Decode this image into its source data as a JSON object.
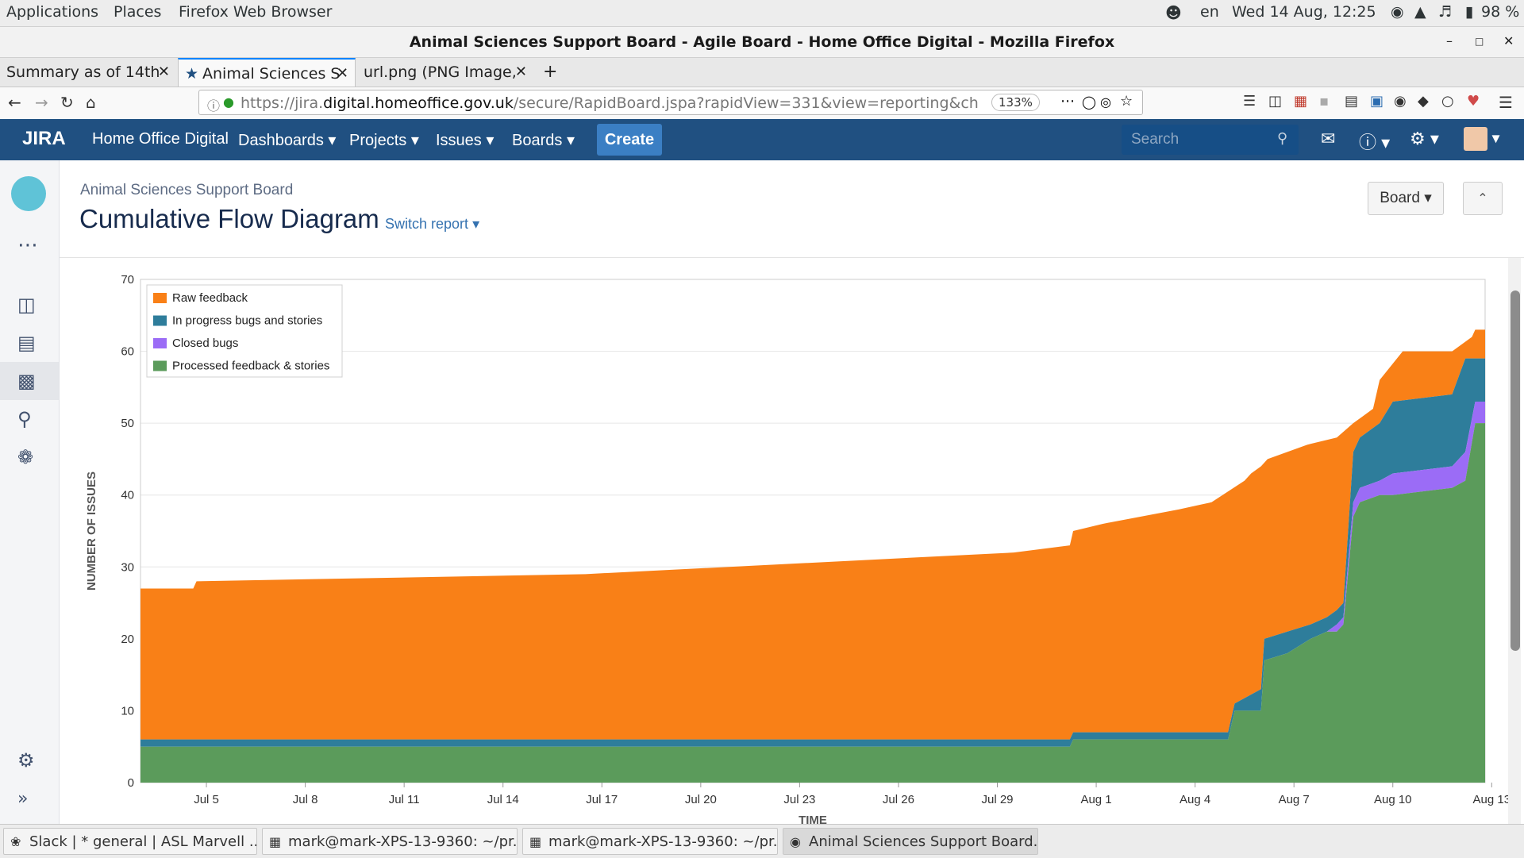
{
  "system_bar": {
    "menus": [
      "Applications",
      "Places",
      "Firefox Web Browser"
    ],
    "lang": "en",
    "clock": "Wed 14 Aug, 12:25",
    "battery": "98 %"
  },
  "window": {
    "title": "Animal Sciences Support Board - Agile Board - Home Office Digital - Mozilla Firefox"
  },
  "tabs": [
    {
      "label": "Summary as of 14th",
      "active": false
    },
    {
      "label": "Animal Sciences S",
      "active": true
    },
    {
      "label": "url.png (PNG Image,",
      "active": false
    }
  ],
  "address": {
    "url_prefix": "https://jira.",
    "url_domain": "digital.homeoffice.gov.uk",
    "url_path": "/secure/RapidBoard.jspa?rapidView=331&view=reporting&ch",
    "zoom": "133%"
  },
  "jira_header": {
    "logo": "JIRA",
    "site": "Home Office Digital",
    "menus": [
      "Dashboards",
      "Projects",
      "Issues",
      "Boards"
    ],
    "create_label": "Create",
    "search_placeholder": "Search"
  },
  "page": {
    "breadcrumb": "Animal Sciences Support Board",
    "title": "Cumulative Flow Diagram",
    "switch_report": "Switch report",
    "board_button": "Board"
  },
  "chart_data": {
    "type": "area",
    "stacked": true,
    "title": "Cumulative Flow Diagram",
    "xlabel": "TIME",
    "ylabel": "NUMBER OF ISSUES",
    "ylim": [
      0,
      70
    ],
    "yticks": [
      0,
      10,
      20,
      30,
      40,
      50,
      60,
      70
    ],
    "x_range_days": [
      0,
      40.8
    ],
    "x_ticks": [
      {
        "day": 2,
        "label": "Jul 5"
      },
      {
        "day": 5,
        "label": "Jul 8"
      },
      {
        "day": 8,
        "label": "Jul 11"
      },
      {
        "day": 11,
        "label": "Jul 14"
      },
      {
        "day": 14,
        "label": "Jul 17"
      },
      {
        "day": 17,
        "label": "Jul 20"
      },
      {
        "day": 20,
        "label": "Jul 23"
      },
      {
        "day": 23,
        "label": "Jul 26"
      },
      {
        "day": 26,
        "label": "Jul 29"
      },
      {
        "day": 29,
        "label": "Aug 1"
      },
      {
        "day": 32,
        "label": "Aug 4"
      },
      {
        "day": 35,
        "label": "Aug 7"
      },
      {
        "day": 38,
        "label": "Aug 10"
      },
      {
        "day": 41,
        "label": "Aug 13"
      }
    ],
    "legend_position": "top-left",
    "series_order_top_to_bottom": [
      "Raw feedback",
      "In progress bugs and stories",
      "Closed bugs",
      "Processed feedback & stories"
    ],
    "colors": {
      "Raw feedback": "#f98017",
      "In progress bugs and stories": "#2e7d9b",
      "Closed bugs": "#9b6cf6",
      "Processed feedback & stories": "#5b9b5b"
    },
    "cumulative_totals": {
      "day": [
        0,
        1.6,
        1.7,
        13.5,
        26.5,
        28.2,
        28.3,
        29.2,
        31.5,
        32.5,
        33.5,
        33.7,
        34.0,
        34.2,
        34.8,
        35.4,
        36.3,
        36.8,
        37.1,
        37.4,
        37.6,
        38.3,
        39.8,
        40.4,
        40.5,
        40.8
      ],
      "total": [
        27,
        27,
        28,
        29,
        32,
        33,
        35,
        36,
        38,
        39,
        42,
        43,
        44,
        45,
        46,
        47,
        48,
        50,
        51,
        52,
        56,
        60,
        60,
        62,
        63,
        63
      ]
    },
    "band_tops": {
      "day": [
        0,
        28.2,
        28.3,
        33.0,
        33.2,
        34.0,
        34.1,
        34.8,
        35.5,
        36.0,
        36.3,
        36.5,
        36.8,
        37.0,
        37.6,
        38.0,
        39.8,
        40.2,
        40.5,
        40.8
      ],
      "processed": [
        5,
        5,
        6,
        6,
        10,
        10,
        17,
        18,
        20,
        21,
        21,
        22,
        37,
        39,
        40,
        40,
        41,
        42,
        50,
        50
      ],
      "closed": [
        5,
        5,
        6,
        6,
        10,
        10,
        17,
        18,
        20,
        21,
        22,
        23,
        39,
        41,
        42,
        43,
        44,
        46,
        53,
        53
      ],
      "inprogress": [
        6,
        6,
        7,
        7,
        11,
        13,
        20,
        21,
        22,
        23,
        24,
        25,
        46,
        48,
        50,
        53,
        54,
        59,
        59,
        59
      ]
    }
  },
  "taskbar": {
    "items": [
      {
        "label": "Slack | * general | ASL Marvell ...",
        "active": false
      },
      {
        "label": "mark@mark-XPS-13-9360: ~/pr...",
        "active": false
      },
      {
        "label": "mark@mark-XPS-13-9360: ~/pr...",
        "active": false
      },
      {
        "label": "Animal Sciences Support Board...",
        "active": true
      }
    ]
  }
}
